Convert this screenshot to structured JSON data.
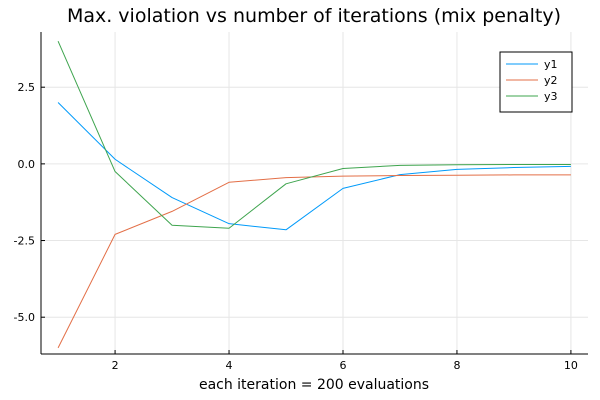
{
  "chart_data": {
    "type": "line",
    "title": "Max. violation vs number of iterations (mix penalty)",
    "xlabel": "each iteration = 200 evaluations",
    "ylabel": "",
    "x": [
      1,
      2,
      3,
      4,
      5,
      6,
      7,
      8,
      9,
      10
    ],
    "xlim": [
      0.7,
      10.3
    ],
    "ylim": [
      -6.2,
      4.3
    ],
    "xticks": [
      2,
      4,
      6,
      8,
      10
    ],
    "xtick_labels": [
      "2",
      "4",
      "6",
      "8",
      "10"
    ],
    "yticks": [
      -5.0,
      -2.5,
      0.0,
      2.5
    ],
    "ytick_labels": [
      "-5.0",
      "-2.5",
      "0.0",
      "2.5"
    ],
    "grid": true,
    "legend_position": "top-right",
    "series": [
      {
        "name": "y1",
        "color": "#009AFA",
        "values": [
          2.0,
          0.15,
          -1.1,
          -1.95,
          -2.15,
          -0.8,
          -0.35,
          -0.18,
          -0.12,
          -0.08
        ]
      },
      {
        "name": "y2",
        "color": "#E36F47",
        "values": [
          -6.0,
          -2.3,
          -1.55,
          -0.6,
          -0.45,
          -0.4,
          -0.38,
          -0.37,
          -0.36,
          -0.36
        ]
      },
      {
        "name": "y3",
        "color": "#3EA44E",
        "values": [
          4.0,
          -0.25,
          -2.0,
          -2.1,
          -0.65,
          -0.15,
          -0.05,
          -0.03,
          -0.02,
          -0.02
        ]
      }
    ]
  }
}
